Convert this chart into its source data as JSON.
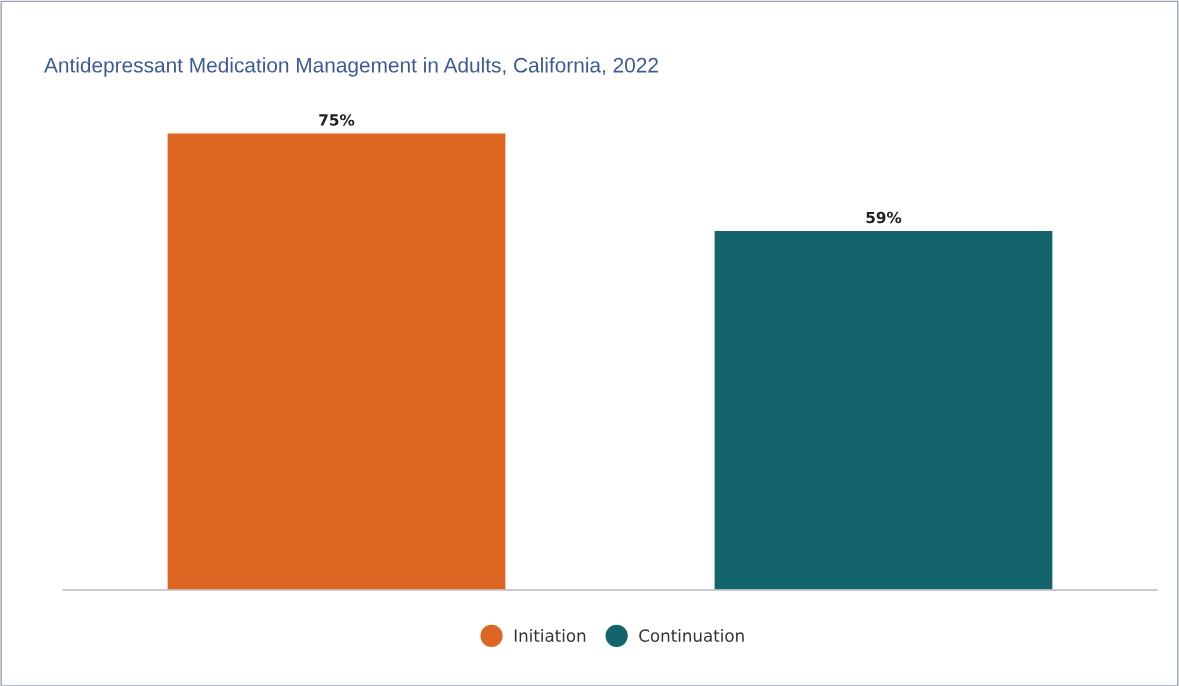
{
  "chart_data": {
    "type": "bar",
    "title": "Antidepressant Medication Management in Adults, California, 2022",
    "categories": [
      null
    ],
    "series": [
      {
        "name": "Initiation",
        "color": "#dd6722",
        "values": [
          75
        ],
        "value_labels": [
          "75%"
        ]
      },
      {
        "name": "Continuation",
        "color": "#14646b",
        "values": [
          59
        ],
        "value_labels": [
          "59%"
        ]
      }
    ],
    "tick_labels": false,
    "grid": false,
    "legend": "bottom",
    "marker": "circle"
  }
}
